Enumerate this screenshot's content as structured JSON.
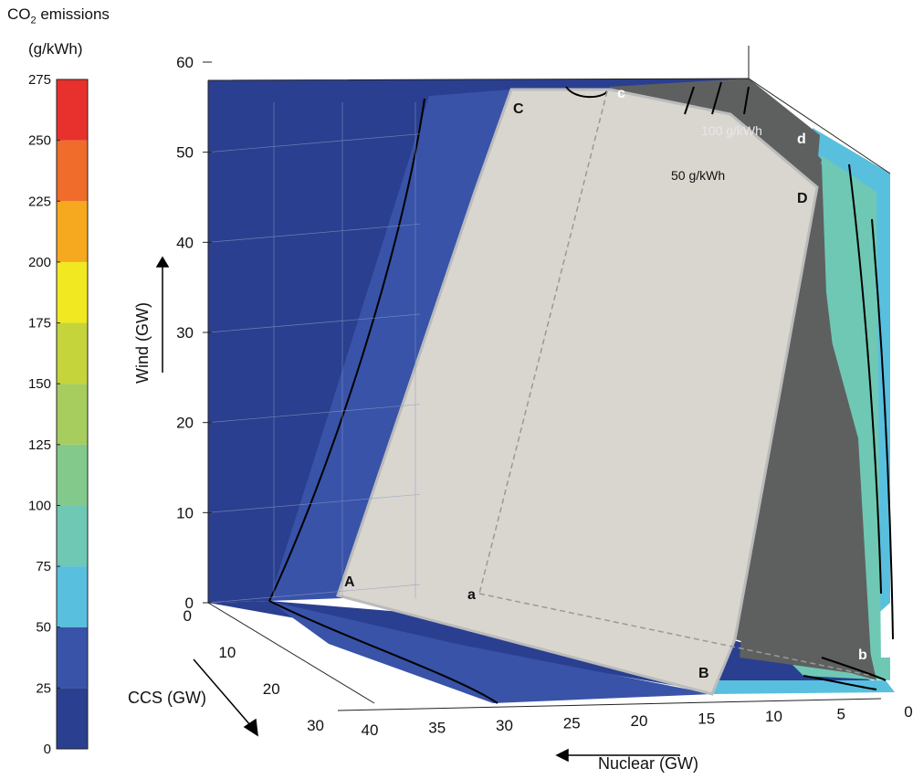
{
  "chart_data": {
    "type": "surface3d",
    "colorbar": {
      "title_main": "CO",
      "title_sub": "2",
      "title_rest": " emissions",
      "unit": "(g/kWh)",
      "ticks": [
        0,
        25,
        50,
        75,
        100,
        125,
        150,
        175,
        200,
        225,
        250,
        275
      ],
      "range": [
        0,
        275
      ],
      "band_colors": [
        "#2a3f8f",
        "#3853a8",
        "#59bfde",
        "#6fc8b4",
        "#84c98c",
        "#a6cd5e",
        "#c6d43c",
        "#f1e821",
        "#f6a81e",
        "#ef6c2b",
        "#e8312d"
      ]
    },
    "axes": {
      "wind": {
        "label": "Wind (GW)",
        "range": [
          0,
          60
        ],
        "ticks": [
          0,
          10,
          20,
          30,
          40,
          50,
          60
        ]
      },
      "ccs": {
        "label": "CCS (GW)",
        "range": [
          0,
          30
        ],
        "ticks": [
          0,
          10,
          20,
          30
        ]
      },
      "nuclear": {
        "label": "Nuclear (GW)",
        "range": [
          0,
          40
        ],
        "ticks": [
          40,
          35,
          30,
          25,
          20,
          15,
          10,
          5,
          0
        ]
      }
    },
    "contour_labels": [
      "100 g/kWh",
      "50 g/kWh"
    ],
    "points": [
      "A",
      "B",
      "C",
      "D",
      "a",
      "b",
      "c",
      "d"
    ]
  }
}
